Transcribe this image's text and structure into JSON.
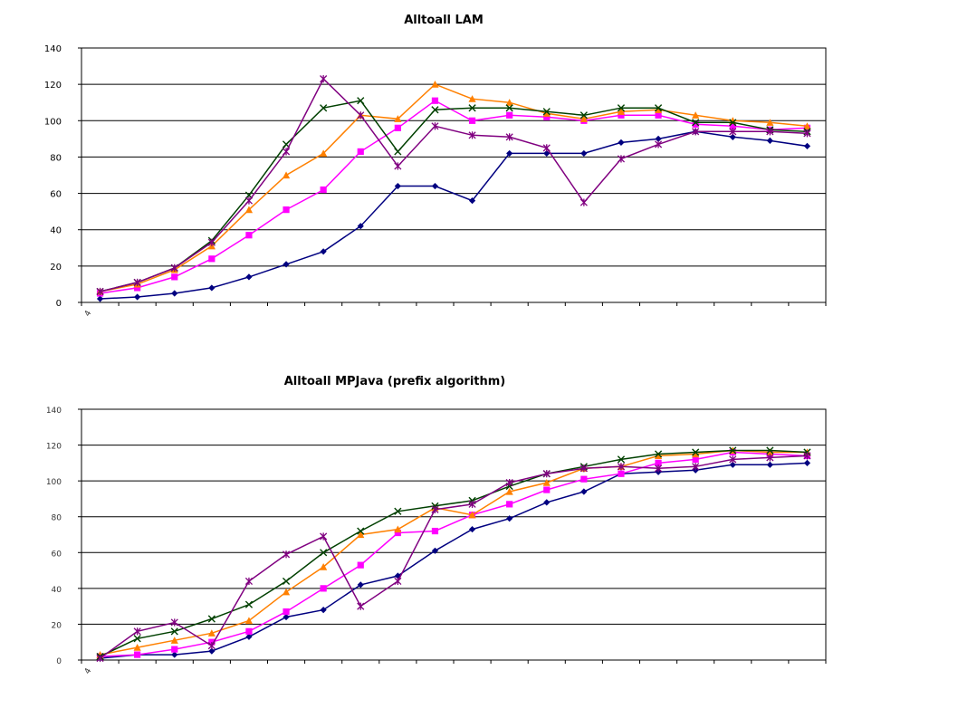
{
  "chart_data": [
    {
      "type": "line",
      "title": "Alltoall LAM",
      "ylim": [
        0,
        140
      ],
      "yticks": [
        0,
        20,
        40,
        60,
        80,
        100,
        120,
        140
      ],
      "x_first_label": "4",
      "grid": true,
      "legend": "none",
      "series": [
        {
          "color": "#000080",
          "marker": "diamond",
          "values": [
            2,
            3,
            5,
            8,
            14,
            21,
            28,
            42,
            64,
            64,
            56,
            82,
            82,
            82,
            88,
            90,
            94,
            91,
            89,
            86
          ]
        },
        {
          "color": "#ff00ff",
          "marker": "square",
          "values": [
            5,
            8,
            14,
            24,
            37,
            51,
            62,
            83,
            96,
            111,
            100,
            103,
            102,
            100,
            103,
            103,
            98,
            97,
            95,
            96
          ]
        },
        {
          "color": "#ff8000",
          "marker": "triangle",
          "values": [
            6,
            10,
            18,
            31,
            51,
            70,
            82,
            103,
            101,
            120,
            112,
            110,
            104,
            101,
            105,
            106,
            103,
            100,
            99,
            97
          ]
        },
        {
          "color": "#004000",
          "marker": "x",
          "values": [
            6,
            11,
            19,
            34,
            59,
            87,
            107,
            111,
            83,
            106,
            107,
            107,
            105,
            103,
            107,
            107,
            99,
            99,
            95,
            94
          ]
        },
        {
          "color": "#800080",
          "marker": "star",
          "values": [
            6,
            11,
            19,
            33,
            56,
            83,
            123,
            103,
            75,
            97,
            92,
            91,
            85,
            55,
            79,
            87,
            94,
            94,
            94,
            93
          ]
        }
      ]
    },
    {
      "type": "line",
      "title": "Alltoall MPJava (prefix algorithm)",
      "ylim": [
        0,
        140
      ],
      "yticks": [
        0,
        20,
        40,
        60,
        80,
        100,
        120,
        140
      ],
      "x_first_label": "4",
      "grid": true,
      "legend": "none",
      "series": [
        {
          "color": "#000080",
          "marker": "diamond",
          "values": [
            1,
            3,
            3,
            5,
            13,
            24,
            28,
            42,
            47,
            61,
            73,
            79,
            88,
            94,
            104,
            105,
            106,
            109,
            109,
            110
          ]
        },
        {
          "color": "#ff00ff",
          "marker": "square",
          "values": [
            2,
            3,
            6,
            10,
            16,
            27,
            40,
            53,
            71,
            72,
            81,
            87,
            95,
            101,
            104,
            110,
            112,
            116,
            115,
            114
          ]
        },
        {
          "color": "#ff8000",
          "marker": "triangle",
          "values": [
            3,
            7,
            11,
            15,
            22,
            38,
            52,
            70,
            73,
            85,
            81,
            94,
            99,
            107,
            108,
            114,
            115,
            117,
            116,
            116
          ]
        },
        {
          "color": "#004000",
          "marker": "x",
          "values": [
            2,
            12,
            16,
            23,
            31,
            44,
            60,
            72,
            83,
            86,
            89,
            97,
            104,
            108,
            112,
            115,
            116,
            117,
            117,
            116
          ]
        },
        {
          "color": "#800080",
          "marker": "star",
          "values": [
            1,
            16,
            21,
            8,
            44,
            59,
            69,
            30,
            44,
            84,
            87,
            99,
            104,
            107,
            108,
            107,
            108,
            112,
            113,
            114
          ]
        }
      ]
    }
  ]
}
